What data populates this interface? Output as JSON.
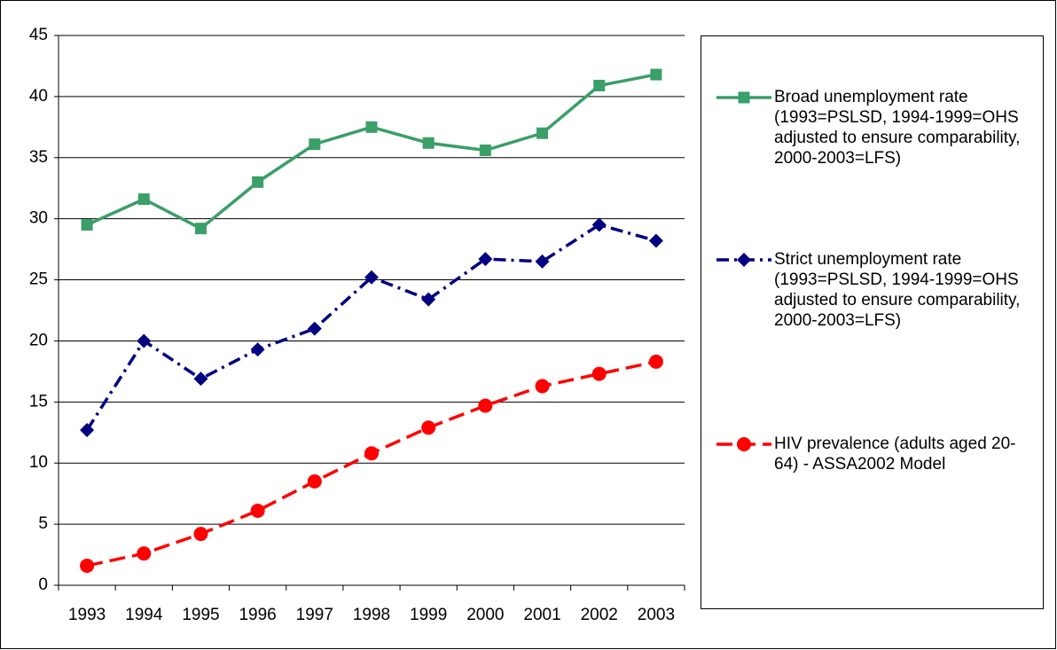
{
  "chart_data": {
    "type": "line",
    "categories": [
      "1993",
      "1994",
      "1995",
      "1996",
      "1997",
      "1998",
      "1999",
      "2000",
      "2001",
      "2002",
      "2003"
    ],
    "series": [
      {
        "name": "Broad unemployment rate (1993=PSLSD, 1994-1999=OHS adjusted to ensure comparability, 2000-2003=LFS)",
        "color": "#3a9f68",
        "marker": "square",
        "line_style": "solid",
        "values": [
          29.5,
          31.6,
          29.2,
          33.0,
          36.1,
          37.5,
          36.2,
          35.6,
          37.0,
          40.9,
          41.8
        ]
      },
      {
        "name": "Strict unemployment rate (1993=PSLSD, 1994-1999=OHS adjusted to ensure comparability, 2000-2003=LFS)",
        "color": "#000080",
        "marker": "diamond",
        "line_style": "dashdot",
        "values": [
          12.7,
          20.0,
          16.9,
          19.3,
          21.0,
          25.2,
          23.4,
          26.7,
          26.5,
          29.5,
          28.2
        ]
      },
      {
        "name": "HIV prevalence (adults aged 20-64) - ASSA2002 Model",
        "color": "#ff0000",
        "marker": "circle",
        "line_style": "dashed",
        "values": [
          1.6,
          2.6,
          4.2,
          6.1,
          8.5,
          10.8,
          12.9,
          14.7,
          16.3,
          17.3,
          18.3
        ]
      }
    ],
    "ylim": [
      0,
      45
    ],
    "yticks": [
      0,
      5,
      10,
      15,
      20,
      25,
      30,
      35,
      40,
      45
    ],
    "grid": true,
    "legend": "right"
  }
}
